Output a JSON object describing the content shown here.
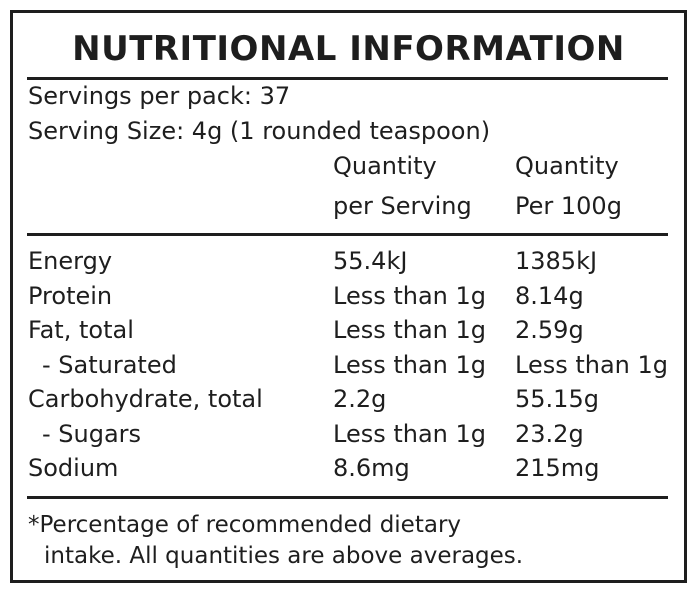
{
  "panel": {
    "title": "NUTRITIONAL INFORMATION",
    "servings_per_pack": "Servings per pack: 37",
    "serving_size": "Serving Size: 4g (1 rounded teaspoon)",
    "column_headers": {
      "per_serving": [
        "Quantity",
        "per Serving"
      ],
      "per_100g": [
        "Quantity",
        "Per 100g"
      ]
    },
    "rows": [
      {
        "label": "Energy",
        "per_serving": "55.4kJ",
        "per_100g": "1385kJ"
      },
      {
        "label": "Protein",
        "per_serving": "Less than 1g",
        "per_100g": "8.14g"
      },
      {
        "label": "Fat, total",
        "per_serving": "Less than 1g",
        "per_100g": "2.59g"
      },
      {
        "label": "- Saturated",
        "per_serving": "Less than 1g",
        "per_100g": "Less than 1g"
      },
      {
        "label": "Carbohydrate, total",
        "per_serving": "2.2g",
        "per_100g": "55.15g"
      },
      {
        "label": "- Sugars",
        "per_serving": "Less than 1g",
        "per_100g": "23.2g"
      },
      {
        "label": "Sodium",
        "per_serving": "8.6mg",
        "per_100g": "215mg"
      }
    ],
    "footnote": [
      "*Percentage of recommended dietary",
      "intake. All quantities are above averages."
    ]
  },
  "colors": {
    "ink": "#1e1e1e",
    "background": "#ffffff"
  }
}
